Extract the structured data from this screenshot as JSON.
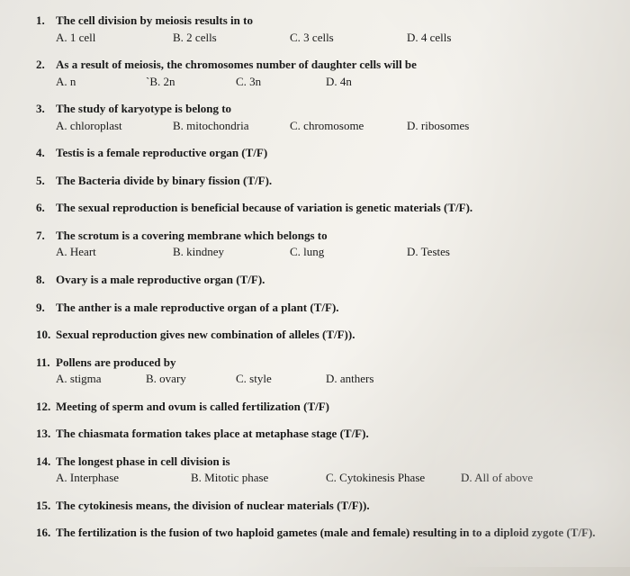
{
  "questions": [
    {
      "n": "1.",
      "stem": "The cell division by meiosis results in to",
      "opts": [
        "A. 1 cell",
        "B. 2 cells",
        "C. 3 cells",
        "D.  4 cells"
      ],
      "cls": ""
    },
    {
      "n": "2.",
      "stem": "As a result of meiosis, the chromosomes number of daughter cells will be",
      "opts": [
        "A. n",
        "`B.  2n",
        "C. 3n",
        "D.   4n"
      ],
      "cls": "narrow"
    },
    {
      "n": "3.",
      "stem": "The study of karyotype is belong to",
      "opts": [
        "A. chloroplast",
        "B. mitochondria",
        "C. chromosome",
        "D.  ribosomes"
      ],
      "cls": ""
    },
    {
      "n": "4.",
      "stem": "Testis is a female reproductive organ (T/F)",
      "opts": []
    },
    {
      "n": "5.",
      "stem": "The Bacteria divide by binary fission (T/F).",
      "opts": []
    },
    {
      "n": "6.",
      "stem": "The sexual reproduction is beneficial because of variation is genetic materials (T/F).",
      "opts": []
    },
    {
      "n": "7.",
      "stem": "The scrotum is a covering membrane which belongs to",
      "opts": [
        "A.  Heart",
        "B. kindney",
        "C.  lung",
        "D. Testes"
      ],
      "cls": ""
    },
    {
      "n": "8.",
      "stem": "Ovary is a male reproductive organ (T/F).",
      "opts": []
    },
    {
      "n": "9.",
      "stem": "The anther is a male reproductive organ of a plant (T/F).",
      "opts": []
    },
    {
      "n": "10.",
      "stem": "Sexual reproduction gives new combination of alleles (T/F)).",
      "opts": []
    },
    {
      "n": "11.",
      "stem": "Pollens are produced by",
      "opts": [
        "A.  stigma",
        "B. ovary",
        "C. style",
        "D.  anthers"
      ],
      "cls": "narrow"
    },
    {
      "n": "12.",
      "stem": "Meeting of sperm and ovum is called fertilization (T/F)",
      "opts": []
    },
    {
      "n": "13.",
      "stem": "The chiasmata formation takes place at metaphase stage (T/F).",
      "opts": []
    },
    {
      "n": "14.",
      "stem": "The longest phase in cell division is",
      "opts": [
        "A. Interphase",
        "B. Mitotic phase",
        "C. Cytokinesis Phase",
        "D.  All of above"
      ],
      "cls": "wide"
    },
    {
      "n": "15.",
      "stem": "The cytokinesis means, the division of nuclear materials (T/F)).",
      "opts": []
    },
    {
      "n": "16.",
      "stem": "The fertilization is the fusion of two haploid gametes (male and female)  resulting in to a diploid zygote (T/F).",
      "opts": []
    }
  ]
}
